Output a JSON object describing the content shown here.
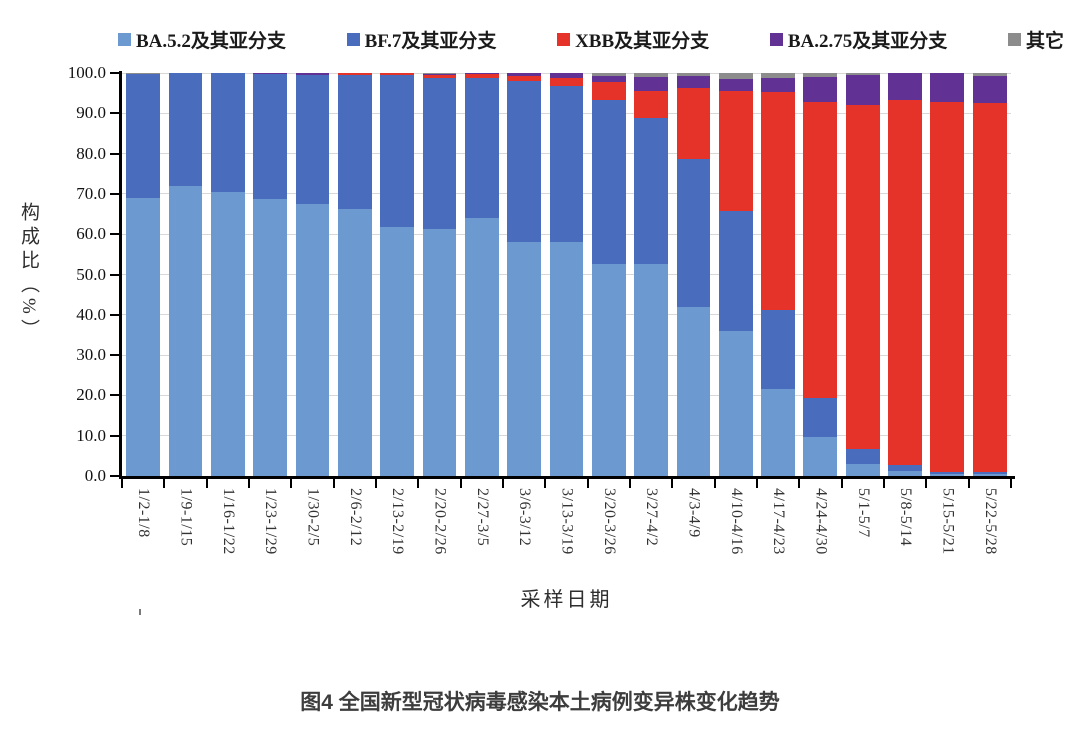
{
  "caption": "图4 全国新型冠状病毒感染本土病例变异株变化趋势",
  "chart_data": {
    "type": "bar",
    "stacked": true,
    "xlabel": "采样日期",
    "ylabel": "构成比（%）",
    "ylim": [
      0,
      100
    ],
    "grid": true,
    "legend_position": "top",
    "ytick_labels": [
      "0.0",
      "10.0",
      "20.0",
      "30.0",
      "40.0",
      "50.0",
      "60.0",
      "70.0",
      "80.0",
      "90.0",
      "100.0"
    ],
    "categories": [
      "1/2-1/8",
      "1/9-1/15",
      "1/16-1/22",
      "1/23-1/29",
      "1/30-2/5",
      "2/6-2/12",
      "2/13-2/19",
      "2/20-2/26",
      "2/27-3/5",
      "3/6-3/12",
      "3/13-3/19",
      "3/20-3/26",
      "3/27-4/2",
      "4/3-4/9",
      "4/10-4/16",
      "4/17-4/23",
      "4/24-4/30",
      "5/1-5/7",
      "5/8-5/14",
      "5/15-5/21",
      "5/22-5/28"
    ],
    "series": [
      {
        "name": "BA.5.2及其亚分支",
        "color": "#6C99CF",
        "values": [
          69.0,
          72.0,
          70.5,
          68.7,
          67.4,
          66.2,
          61.8,
          61.2,
          64.0,
          58.0,
          58.0,
          52.5,
          52.5,
          42.0,
          36.0,
          21.6,
          9.8,
          3.0,
          1.2,
          0.5,
          0.4
        ]
      },
      {
        "name": "BF.7及其亚分支",
        "color": "#4A6CBD",
        "values": [
          30.7,
          28.0,
          29.4,
          31.0,
          32.1,
          33.3,
          37.6,
          37.5,
          34.8,
          39.9,
          38.7,
          40.9,
          36.4,
          36.6,
          29.8,
          19.6,
          9.5,
          3.7,
          1.6,
          0.6,
          0.5
        ]
      },
      {
        "name": "XBB及其亚分支",
        "color": "#E5332A",
        "values": [
          0,
          0,
          0,
          0,
          0,
          0.5,
          0.6,
          0.9,
          1.0,
          1.3,
          2.0,
          4.3,
          6.6,
          17.7,
          29.7,
          54.0,
          73.4,
          85.4,
          90.5,
          91.8,
          91.6
        ]
      },
      {
        "name": "BA.2.75及其亚分支",
        "color": "#613293",
        "values": [
          0,
          0,
          0,
          0.3,
          0.5,
          0,
          0,
          0.2,
          0.1,
          0.8,
          1.3,
          1.6,
          3.5,
          2.9,
          3.0,
          3.6,
          6.3,
          7.5,
          6.7,
          7.1,
          6.7
        ]
      },
      {
        "name": "其它",
        "color": "#8C8C8C",
        "values": [
          0.3,
          0,
          0.1,
          0,
          0,
          0,
          0,
          0.2,
          0.1,
          0,
          0,
          0.7,
          1.0,
          0.8,
          1.5,
          1.2,
          1.0,
          0.4,
          0,
          0,
          0.8
        ]
      }
    ]
  }
}
